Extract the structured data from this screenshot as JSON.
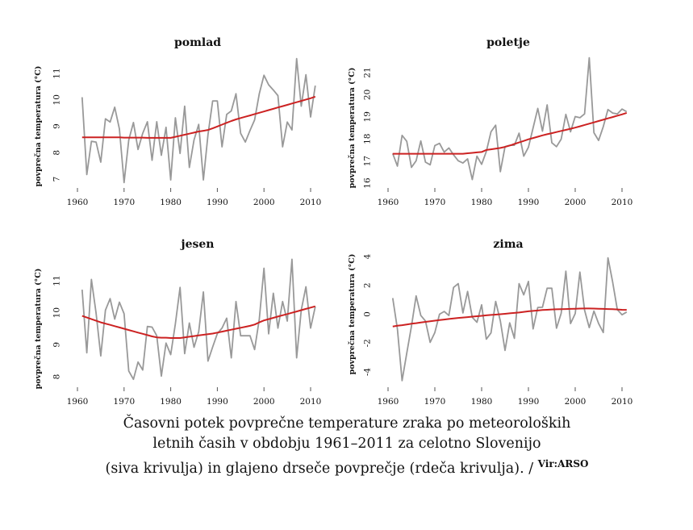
{
  "caption": {
    "line1": "Časovni potek povprečne temperature zraka po meteoroloških",
    "line2": "letnih časih v obdobju 1961–2011 za celotno Slovenijo",
    "line3": "(siva krivulja) in glajeno drseče povprečje (rdeča krivulja). /",
    "source": "Vir:ARSO"
  },
  "colors": {
    "series": "#999999",
    "smooth": "#cc2222",
    "axis": "#555555"
  },
  "chart_data": [
    {
      "type": "line",
      "title": "pomlad",
      "xlabel": "",
      "ylabel": "povprečna temperatura (°C)",
      "xlim": [
        1960,
        2011
      ],
      "ylim": [
        7,
        11
      ],
      "xticks": [
        1960,
        1970,
        1980,
        1990,
        2000,
        2010
      ],
      "yticks": [
        7,
        8,
        9,
        10,
        11
      ],
      "grid": false,
      "x": [
        1961,
        1962,
        1963,
        1964,
        1965,
        1966,
        1967,
        1968,
        1969,
        1970,
        1971,
        1972,
        1973,
        1974,
        1975,
        1976,
        1977,
        1978,
        1979,
        1980,
        1981,
        1982,
        1983,
        1984,
        1985,
        1986,
        1987,
        1988,
        1989,
        1990,
        1991,
        1992,
        1993,
        1994,
        1995,
        1996,
        1997,
        1998,
        1999,
        2000,
        2001,
        2002,
        2003,
        2004,
        2005,
        2006,
        2007,
        2008,
        2009,
        2010,
        2011
      ],
      "series": [
        {
          "name": "povprečna temperatura",
          "color_key": "series",
          "values": [
            10.1,
            7.17,
            8.43,
            8.4,
            7.64,
            9.28,
            9.16,
            9.72,
            8.9,
            6.87,
            8.48,
            9.14,
            8.12,
            8.73,
            9.17,
            7.71,
            9.17,
            7.9,
            8.96,
            6.97,
            9.32,
            7.97,
            9.76,
            7.44,
            8.48,
            9.07,
            6.97,
            8.68,
            9.96,
            9.96,
            8.22,
            9.45,
            9.58,
            10.23,
            8.73,
            8.4,
            8.84,
            9.24,
            10.23,
            10.93,
            10.57,
            10.37,
            10.16,
            8.22,
            9.16,
            8.86,
            11.56,
            9.76,
            10.95,
            9.35,
            10.54
          ]
        },
        {
          "name": "glajeno drseče povprečje",
          "color_key": "smooth",
          "values": [
            8.58,
            8.58,
            8.58,
            8.58,
            8.58,
            8.58,
            8.58,
            8.58,
            8.58,
            8.57,
            8.57,
            8.57,
            8.57,
            8.57,
            8.56,
            8.56,
            8.56,
            8.56,
            8.56,
            8.56,
            8.6,
            8.64,
            8.68,
            8.72,
            8.76,
            8.8,
            8.83,
            8.86,
            8.92,
            8.99,
            9.06,
            9.13,
            9.2,
            9.26,
            9.31,
            9.36,
            9.41,
            9.46,
            9.51,
            9.56,
            9.61,
            9.66,
            9.71,
            9.76,
            9.81,
            9.86,
            9.91,
            9.96,
            10.01,
            10.06,
            10.12
          ]
        }
      ]
    },
    {
      "type": "line",
      "title": "poletje",
      "xlabel": "",
      "ylabel": "povprečna temperatura (°C)",
      "xlim": [
        1960,
        2011
      ],
      "ylim": [
        16,
        21
      ],
      "xticks": [
        1960,
        1970,
        1980,
        1990,
        2000,
        2010
      ],
      "yticks": [
        16,
        17,
        18,
        19,
        20,
        21
      ],
      "grid": false,
      "x": [
        1961,
        1962,
        1963,
        1964,
        1965,
        1966,
        1967,
        1968,
        1969,
        1970,
        1971,
        1972,
        1973,
        1974,
        1975,
        1976,
        1977,
        1978,
        1979,
        1980,
        1981,
        1982,
        1983,
        1984,
        1985,
        1986,
        1987,
        1988,
        1989,
        1990,
        1991,
        1992,
        1993,
        1994,
        1995,
        1996,
        1997,
        1998,
        1999,
        2000,
        2001,
        2002,
        2003,
        2004,
        2005,
        2006,
        2007,
        2008,
        2009,
        2010,
        2011
      ],
      "series": [
        {
          "name": "povprečna temperatura",
          "color_key": "series",
          "values": [
            17.34,
            16.77,
            18.16,
            17.89,
            16.71,
            17.01,
            17.91,
            16.95,
            16.83,
            17.7,
            17.8,
            17.4,
            17.59,
            17.28,
            17.01,
            16.91,
            17.1,
            16.16,
            17.22,
            16.85,
            17.43,
            18.32,
            18.62,
            16.52,
            17.65,
            17.71,
            17.71,
            18.26,
            17.22,
            17.62,
            18.5,
            19.38,
            18.35,
            19.54,
            17.83,
            17.65,
            17.99,
            19.11,
            18.32,
            19.01,
            18.96,
            19.13,
            21.67,
            18.28,
            17.93,
            18.56,
            19.33,
            19.17,
            19.13,
            19.35,
            19.23
          ]
        },
        {
          "name": "glajeno drseče povprečje",
          "color_key": "smooth",
          "values": [
            17.33,
            17.33,
            17.33,
            17.33,
            17.33,
            17.33,
            17.33,
            17.33,
            17.33,
            17.33,
            17.33,
            17.33,
            17.33,
            17.33,
            17.33,
            17.33,
            17.35,
            17.37,
            17.39,
            17.41,
            17.5,
            17.53,
            17.56,
            17.59,
            17.64,
            17.7,
            17.77,
            17.84,
            17.91,
            17.98,
            18.04,
            18.1,
            18.16,
            18.21,
            18.26,
            18.31,
            18.36,
            18.41,
            18.46,
            18.51,
            18.57,
            18.63,
            18.69,
            18.75,
            18.81,
            18.87,
            18.93,
            18.99,
            19.05,
            19.11,
            19.18
          ]
        }
      ]
    },
    {
      "type": "line",
      "title": "jesen",
      "xlabel": "",
      "ylabel": "povprečna temperatura (°C)",
      "xlim": [
        1960,
        2011
      ],
      "ylim": [
        8,
        11
      ],
      "xticks": [
        1960,
        1970,
        1980,
        1990,
        2000,
        2010
      ],
      "yticks": [
        8,
        9,
        10,
        11
      ],
      "grid": false,
      "x": [
        1961,
        1962,
        1963,
        1964,
        1965,
        1966,
        1967,
        1968,
        1969,
        1970,
        1971,
        1972,
        1973,
        1974,
        1975,
        1976,
        1977,
        1978,
        1979,
        1980,
        1981,
        1982,
        1983,
        1984,
        1985,
        1986,
        1987,
        1988,
        1989,
        1990,
        1991,
        1992,
        1993,
        1994,
        1995,
        1996,
        1997,
        1998,
        1999,
        2000,
        2001,
        2002,
        2003,
        2004,
        2005,
        2006,
        2007,
        2008,
        2009,
        2010,
        2011
      ],
      "series": [
        {
          "name": "povprečna temperatura",
          "color_key": "series",
          "values": [
            10.72,
            8.75,
            11.04,
            9.99,
            8.65,
            10.08,
            10.44,
            9.8,
            10.33,
            9.97,
            8.18,
            7.92,
            8.46,
            8.21,
            9.57,
            9.55,
            9.28,
            8.02,
            9.05,
            8.69,
            9.66,
            10.79,
            8.72,
            9.68,
            8.92,
            9.41,
            10.65,
            8.49,
            8.93,
            9.35,
            9.52,
            9.83,
            8.59,
            10.35,
            9.28,
            9.28,
            9.28,
            8.85,
            9.8,
            11.39,
            9.34,
            10.61,
            9.52,
            10.35,
            9.74,
            11.67,
            8.59,
            10.08,
            10.81,
            9.52,
            10.19
          ]
        },
        {
          "name": "glajeno drseče povprečje",
          "color_key": "smooth",
          "values": [
            9.9,
            9.85,
            9.8,
            9.75,
            9.7,
            9.66,
            9.62,
            9.58,
            9.54,
            9.5,
            9.46,
            9.42,
            9.38,
            9.34,
            9.3,
            9.26,
            9.23,
            9.22,
            9.22,
            9.21,
            9.21,
            9.21,
            9.23,
            9.25,
            9.27,
            9.29,
            9.31,
            9.33,
            9.35,
            9.38,
            9.41,
            9.44,
            9.47,
            9.5,
            9.53,
            9.56,
            9.59,
            9.63,
            9.7,
            9.76,
            9.8,
            9.84,
            9.88,
            9.92,
            9.96,
            10.0,
            10.04,
            10.08,
            10.12,
            10.16,
            10.2
          ]
        }
      ]
    },
    {
      "type": "line",
      "title": "zima",
      "xlabel": "",
      "ylabel": "povprečna temperatura (°C)",
      "xlim": [
        1960,
        2011
      ],
      "ylim": [
        -4,
        4
      ],
      "xticks": [
        1960,
        1970,
        1980,
        1990,
        2000,
        2010
      ],
      "yticks": [
        -4,
        -2,
        0,
        2,
        4
      ],
      "grid": false,
      "x": [
        1961,
        1962,
        1963,
        1964,
        1965,
        1966,
        1967,
        1968,
        1969,
        1970,
        1971,
        1972,
        1973,
        1974,
        1975,
        1976,
        1977,
        1978,
        1979,
        1980,
        1981,
        1982,
        1983,
        1984,
        1985,
        1986,
        1987,
        1988,
        1989,
        1990,
        1991,
        1992,
        1993,
        1994,
        1995,
        1996,
        1997,
        1998,
        1999,
        2000,
        2001,
        2002,
        2003,
        2004,
        2005,
        2006,
        2007,
        2008,
        2009,
        2010,
        2011
      ],
      "series": [
        {
          "name": "povprečna temperatura",
          "color_key": "series",
          "values": [
            1.12,
            -1.02,
            -4.61,
            -2.7,
            -0.84,
            1.27,
            -0.09,
            -0.47,
            -1.95,
            -1.27,
            0.0,
            0.19,
            -0.09,
            1.86,
            2.12,
            0.09,
            1.58,
            -0.22,
            -0.56,
            0.65,
            -1.73,
            -1.3,
            0.89,
            -0.47,
            -2.51,
            -0.6,
            -1.67,
            2.12,
            1.34,
            2.27,
            -1.02,
            0.47,
            0.48,
            1.8,
            1.8,
            -0.97,
            0.06,
            2.98,
            -0.65,
            0.04,
            2.92,
            0.28,
            -0.93,
            0.22,
            -0.65,
            -1.27,
            3.91,
            2.23,
            0.32,
            -0.04,
            0.15
          ]
        },
        {
          "name": "glajeno drseče povprečje",
          "color_key": "smooth",
          "values": [
            -0.85,
            -0.8,
            -0.76,
            -0.71,
            -0.66,
            -0.62,
            -0.57,
            -0.53,
            -0.49,
            -0.45,
            -0.41,
            -0.37,
            -0.33,
            -0.29,
            -0.26,
            -0.23,
            -0.2,
            -0.17,
            -0.14,
            -0.11,
            -0.08,
            -0.05,
            -0.03,
            0.0,
            0.03,
            0.06,
            0.09,
            0.12,
            0.16,
            0.2,
            0.23,
            0.26,
            0.29,
            0.31,
            0.33,
            0.34,
            0.35,
            0.36,
            0.37,
            0.38,
            0.39,
            0.4,
            0.4,
            0.39,
            0.38,
            0.37,
            0.36,
            0.35,
            0.33,
            0.31,
            0.3
          ]
        }
      ]
    }
  ]
}
